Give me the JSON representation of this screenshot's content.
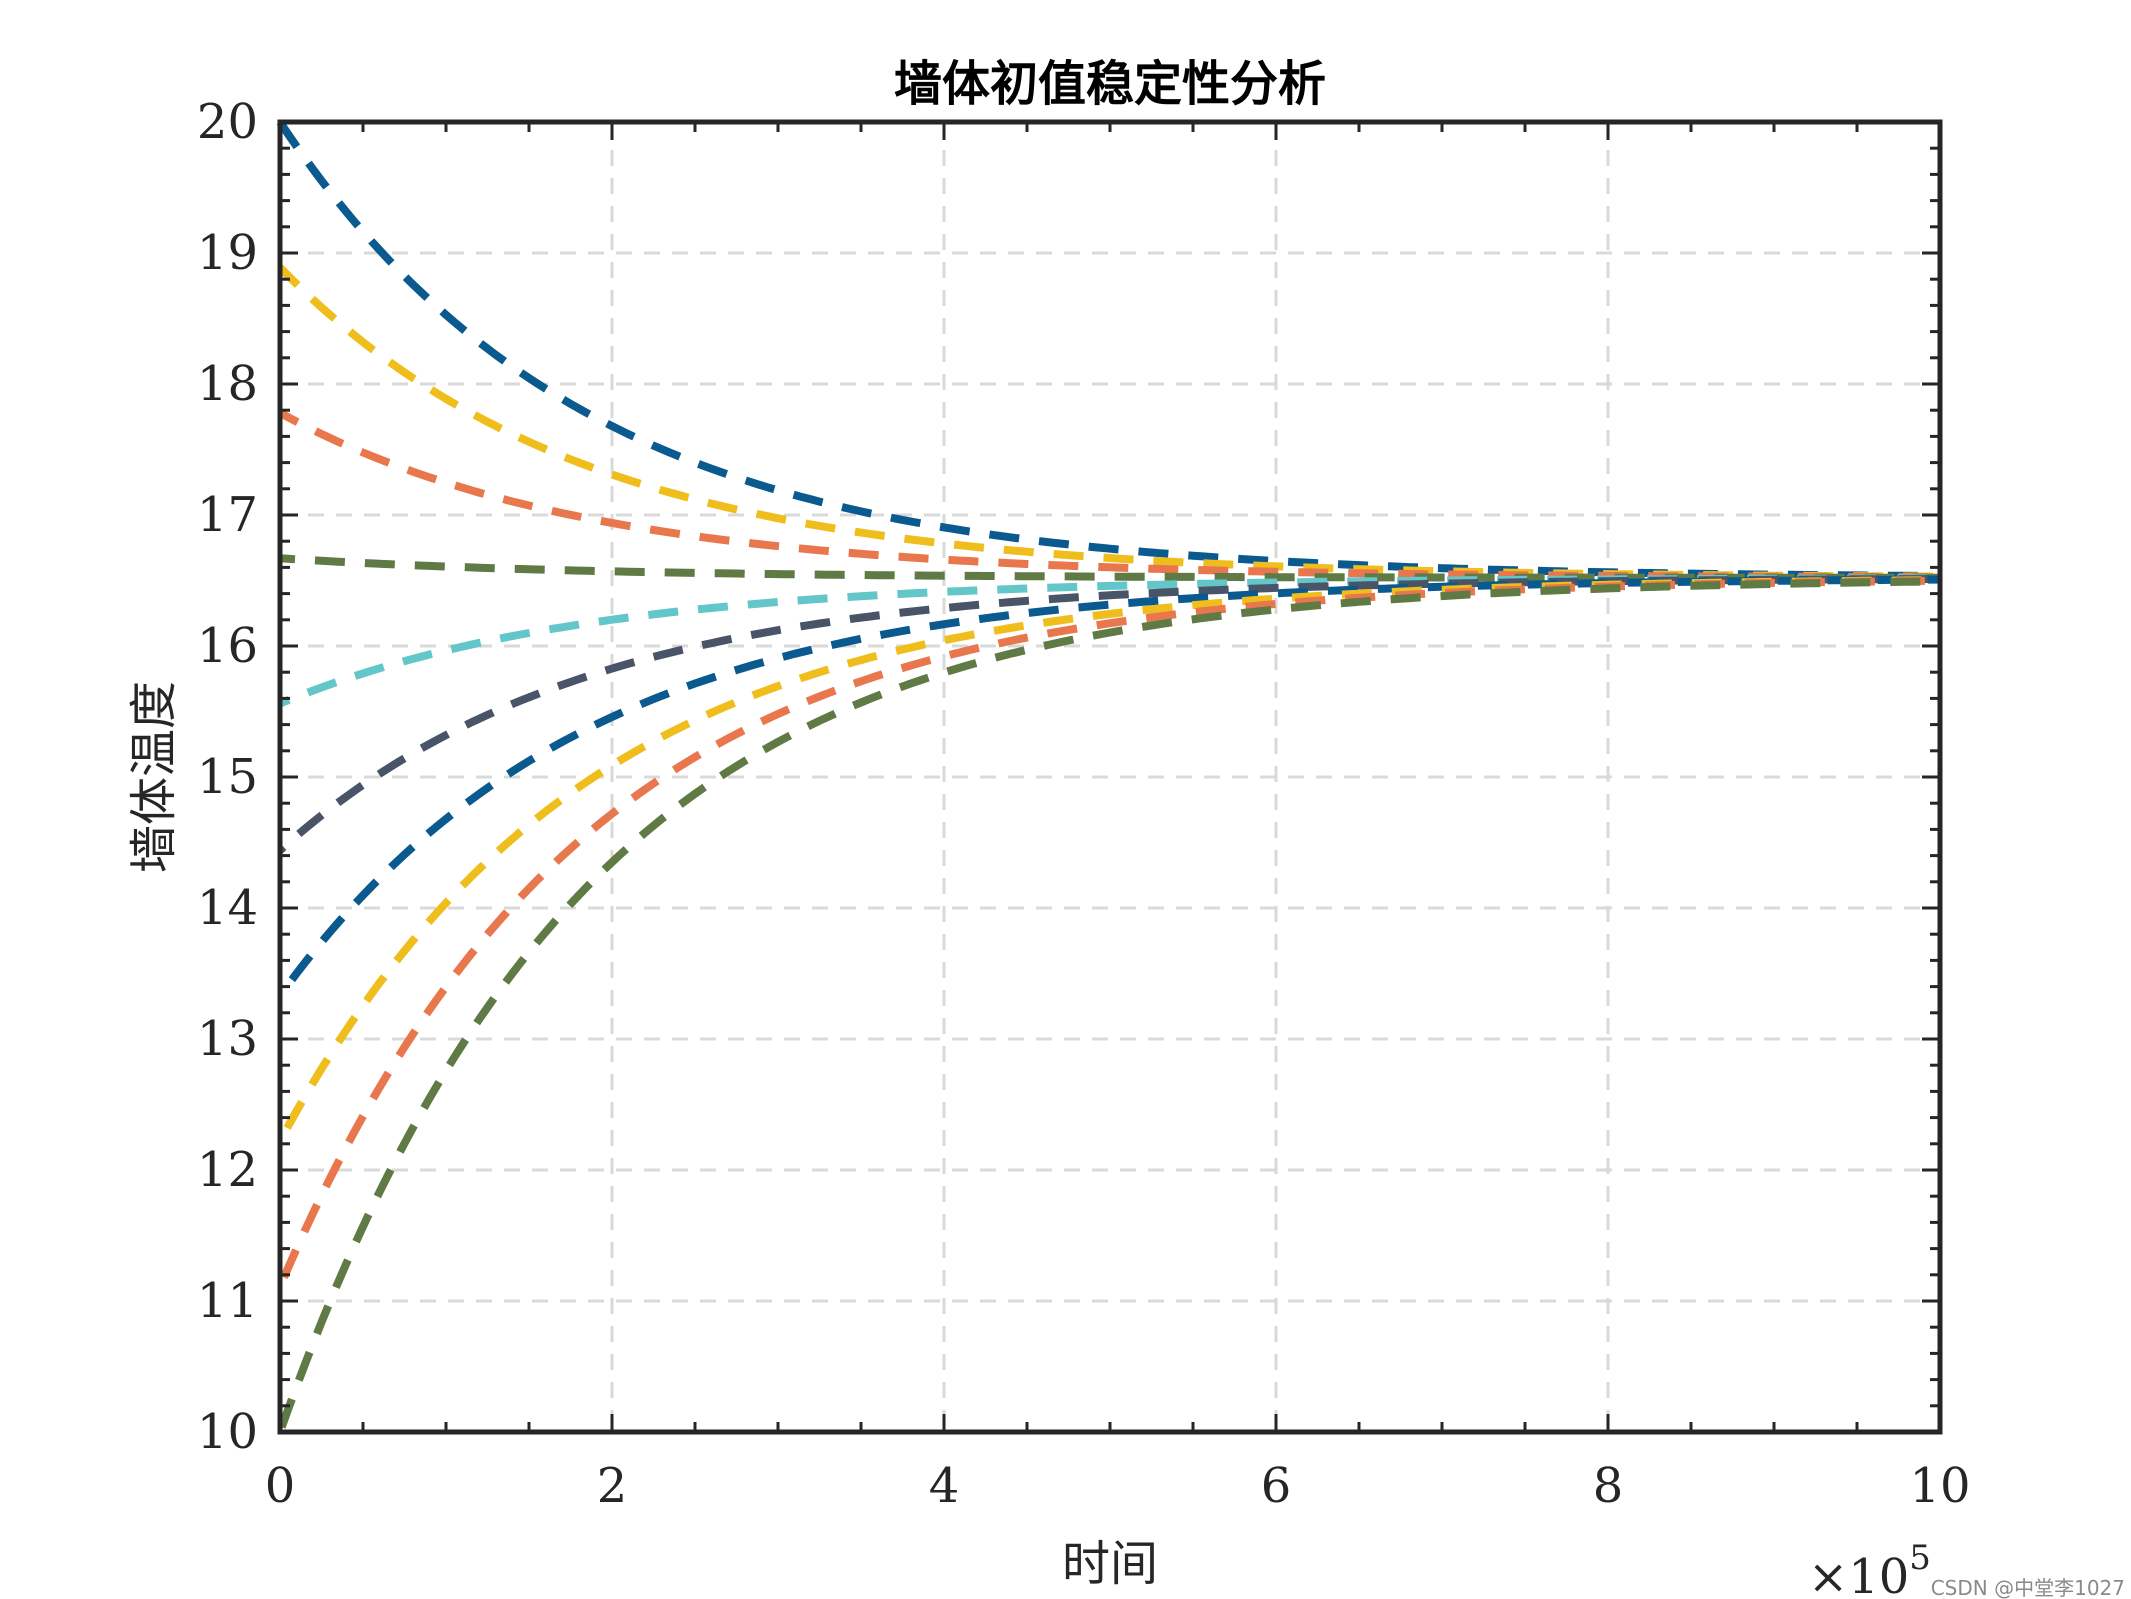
{
  "chart_data": {
    "type": "line",
    "title": "墙体初值稳定性分析",
    "xlabel": "时间",
    "ylabel": "墙体温度",
    "x_exponent": {
      "base": "×10",
      "power": "5"
    },
    "xlim": [
      0,
      10
    ],
    "ylim": [
      10,
      20
    ],
    "xticks": [
      0,
      2,
      4,
      6,
      8,
      10
    ],
    "yticks": [
      10,
      11,
      12,
      13,
      14,
      15,
      16,
      17,
      18,
      19,
      20
    ],
    "x_tick_labels": [
      "0",
      "2",
      "4",
      "6",
      "8",
      "10"
    ],
    "y_tick_labels": [
      "10",
      "11",
      "12",
      "13",
      "14",
      "15",
      "16",
      "17",
      "18",
      "19",
      "20"
    ],
    "grid": true,
    "line_style": "dashed",
    "equilibrium": 16.52,
    "decay_rate": 0.55,
    "series": [
      {
        "initial": 20.0,
        "color": "#0b5a8f"
      },
      {
        "initial": 18.89,
        "color": "#f0be1c"
      },
      {
        "initial": 17.78,
        "color": "#e8774d"
      },
      {
        "initial": 16.67,
        "color": "#5f7a45"
      },
      {
        "initial": 15.56,
        "color": "#63c6c9"
      },
      {
        "initial": 14.44,
        "color": "#4a5468"
      },
      {
        "initial": 13.33,
        "color": "#0b5a8f"
      },
      {
        "initial": 12.22,
        "color": "#f0be1c"
      },
      {
        "initial": 11.11,
        "color": "#e8774d"
      },
      {
        "initial": 10.0,
        "color": "#5f7a45"
      }
    ]
  },
  "watermark": "CSDN @中堂李1027"
}
